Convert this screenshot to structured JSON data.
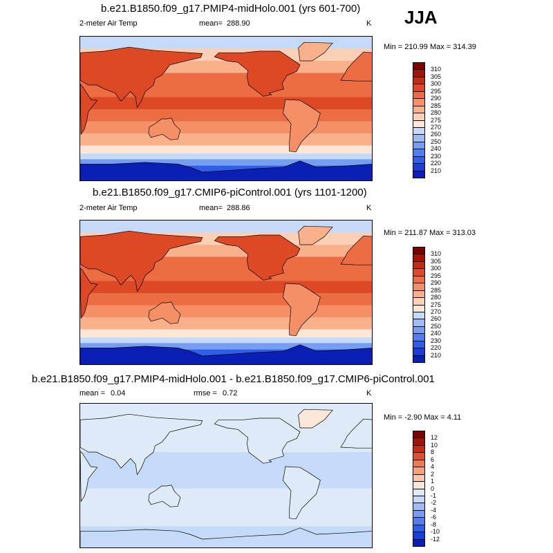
{
  "season": "JJA",
  "colors": {
    "temp_scale": [
      "#00008b",
      "#0a1fb5",
      "#1a3fd6",
      "#2f5fe8",
      "#4f7fee",
      "#759ef2",
      "#9dbcf6",
      "#c5daf8",
      "#fbe6d8",
      "#fcd0b4",
      "#f9b18c",
      "#f48f66",
      "#ec6c43",
      "#dc4924",
      "#c42c0f",
      "#9e1405",
      "#7a0000"
    ],
    "diff_scale": [
      "#00008b",
      "#0a1fb5",
      "#1a3fd6",
      "#2f5fe8",
      "#4f7fee",
      "#759ef2",
      "#9dbcf6",
      "#c5daf8",
      "#dfeaf8",
      "#fbe6d8",
      "#f9c8a8",
      "#f4a47c",
      "#ec7a52",
      "#dc5030",
      "#c42c0f",
      "#9e1405",
      "#7a0000"
    ],
    "land": "#e9f0f8"
  },
  "chart_data": [
    {
      "type": "heatmap",
      "title": "b.e21.B1850.f09_g17.PMIP4-midHolo.001 (yrs 601-700)",
      "left_label": "2-meter Air Temp",
      "mean_label": "mean=",
      "mean_value": "288.90",
      "units": "K",
      "minmax_text": "Min = 210.99 Max = 314.39",
      "min": 210.99,
      "max": 314.39,
      "mean": 288.9,
      "colorbar_levels": [
        "310",
        "305",
        "300",
        "295",
        "290",
        "285",
        "280",
        "275",
        "270",
        "260",
        "250",
        "240",
        "230",
        "220",
        "210"
      ],
      "latitude_profile": [
        {
          "lat": 90,
          "value": 272
        },
        {
          "lat": 75,
          "value": 276
        },
        {
          "lat": 60,
          "value": 285
        },
        {
          "lat": 45,
          "value": 292
        },
        {
          "lat": 30,
          "value": 298
        },
        {
          "lat": 15,
          "value": 301
        },
        {
          "lat": 0,
          "value": 299
        },
        {
          "lat": -15,
          "value": 296
        },
        {
          "lat": -30,
          "value": 290
        },
        {
          "lat": -45,
          "value": 282
        },
        {
          "lat": -55,
          "value": 276
        },
        {
          "lat": -62,
          "value": 268
        },
        {
          "lat": -70,
          "value": 245
        },
        {
          "lat": -80,
          "value": 225
        },
        {
          "lat": -90,
          "value": 215
        }
      ]
    },
    {
      "type": "heatmap",
      "title": "b.e21.B1850.f09_g17.CMIP6-piControl.001 (yrs 1101-1200)",
      "left_label": "2-meter Air Temp",
      "mean_label": "mean=",
      "mean_value": "288.86",
      "units": "K",
      "minmax_text": "Min = 211.87 Max = 313.03",
      "min": 211.87,
      "max": 313.03,
      "mean": 288.86,
      "colorbar_levels": [
        "310",
        "305",
        "300",
        "295",
        "290",
        "285",
        "280",
        "275",
        "270",
        "260",
        "250",
        "240",
        "230",
        "220",
        "210"
      ],
      "latitude_profile": [
        {
          "lat": 90,
          "value": 272
        },
        {
          "lat": 75,
          "value": 276
        },
        {
          "lat": 60,
          "value": 284
        },
        {
          "lat": 45,
          "value": 292
        },
        {
          "lat": 30,
          "value": 298
        },
        {
          "lat": 15,
          "value": 301
        },
        {
          "lat": 0,
          "value": 299
        },
        {
          "lat": -15,
          "value": 296
        },
        {
          "lat": -30,
          "value": 290
        },
        {
          "lat": -45,
          "value": 282
        },
        {
          "lat": -55,
          "value": 276
        },
        {
          "lat": -62,
          "value": 268
        },
        {
          "lat": -70,
          "value": 245
        },
        {
          "lat": -80,
          "value": 226
        },
        {
          "lat": -90,
          "value": 216
        }
      ]
    },
    {
      "type": "heatmap",
      "title": "b.e21.B1850.f09_g17.PMIP4-midHolo.001 - b.e21.B1850.f09_g17.CMIP6-piControl.001",
      "mean_label": "mean =",
      "mean_value": "0.04",
      "rmse_label": "rmse =",
      "rmse_value": "0.72",
      "units": "K",
      "minmax_text": "Min =  -2.90 Max =   4.11",
      "min": -2.9,
      "max": 4.11,
      "mean": 0.04,
      "rmse": 0.72,
      "colorbar_levels": [
        "12",
        "10",
        "8",
        "6",
        "4",
        "2",
        "1",
        "0",
        "-1",
        "-2",
        "-4",
        "-6",
        "-8",
        "-10",
        "-12"
      ],
      "latitude_profile": [
        {
          "lat": 90,
          "value": 0.6
        },
        {
          "lat": 75,
          "value": 0.6
        },
        {
          "lat": 60,
          "value": 0.5
        },
        {
          "lat": 45,
          "value": 0.2
        },
        {
          "lat": 30,
          "value": -0.2
        },
        {
          "lat": 15,
          "value": -0.3
        },
        {
          "lat": 0,
          "value": -0.2
        },
        {
          "lat": -15,
          "value": -0.1
        },
        {
          "lat": -30,
          "value": 0.3
        },
        {
          "lat": -45,
          "value": -0.2
        },
        {
          "lat": -55,
          "value": 0.2
        },
        {
          "lat": -62,
          "value": -0.2
        },
        {
          "lat": -70,
          "value": -0.4
        },
        {
          "lat": -80,
          "value": -0.3
        },
        {
          "lat": -90,
          "value": -0.3
        }
      ]
    }
  ]
}
